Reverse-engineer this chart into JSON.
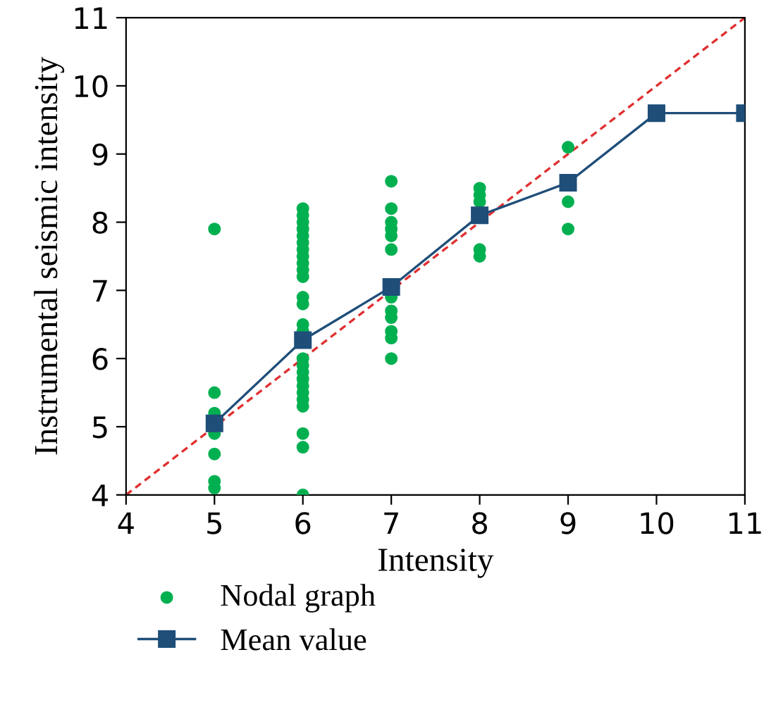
{
  "chart_data": {
    "type": "scatter",
    "xlabel": "Intensity",
    "ylabel": "Instrumental seismic intensity",
    "xlim": [
      4,
      11
    ],
    "ylim": [
      4,
      11
    ],
    "xticks": [
      4,
      5,
      6,
      7,
      8,
      9,
      10,
      11
    ],
    "yticks": [
      4,
      5,
      6,
      7,
      8,
      9,
      10,
      11
    ],
    "grid": false,
    "legend": "bottom left",
    "series": [
      {
        "name": "Nodal graph",
        "color": "#00b050",
        "marker": "circle",
        "x": [
          5,
          5,
          5,
          5,
          5,
          5,
          5,
          6,
          6,
          6,
          6,
          6,
          6,
          6,
          6,
          6,
          6,
          6,
          6,
          6,
          6,
          6,
          6,
          6,
          6,
          6,
          6,
          6,
          6,
          6,
          6,
          6,
          6,
          7,
          7,
          7,
          7,
          7,
          7,
          7,
          7,
          7,
          7,
          7,
          7,
          8,
          8,
          8,
          8,
          8,
          9,
          9,
          9
        ],
        "values": [
          7.9,
          5.5,
          5.2,
          4.9,
          4.6,
          4.2,
          4.1,
          8.2,
          8.1,
          8.0,
          7.9,
          7.8,
          7.7,
          7.6,
          7.5,
          7.4,
          7.3,
          7.2,
          6.9,
          6.8,
          6.5,
          6.4,
          6.0,
          5.9,
          5.8,
          5.7,
          5.6,
          5.5,
          5.4,
          5.3,
          4.9,
          4.7,
          4.0,
          8.6,
          8.2,
          8.0,
          7.9,
          7.8,
          7.6,
          6.9,
          6.7,
          6.6,
          6.4,
          6.3,
          6.0,
          8.5,
          8.4,
          8.3,
          7.6,
          7.5,
          9.1,
          8.3,
          7.9
        ]
      },
      {
        "name": "Mean value",
        "type": "line",
        "color": "#1f4e79",
        "marker": "square",
        "x": [
          5,
          6,
          7,
          8,
          9,
          10,
          11
        ],
        "values": [
          5.05,
          6.27,
          7.05,
          8.1,
          8.58,
          9.6,
          9.6
        ]
      },
      {
        "type": "line",
        "color": "#e03030",
        "marker": "none",
        "line_style": "dashed",
        "x": [
          4,
          11
        ],
        "values": [
          4,
          11
        ]
      }
    ]
  }
}
